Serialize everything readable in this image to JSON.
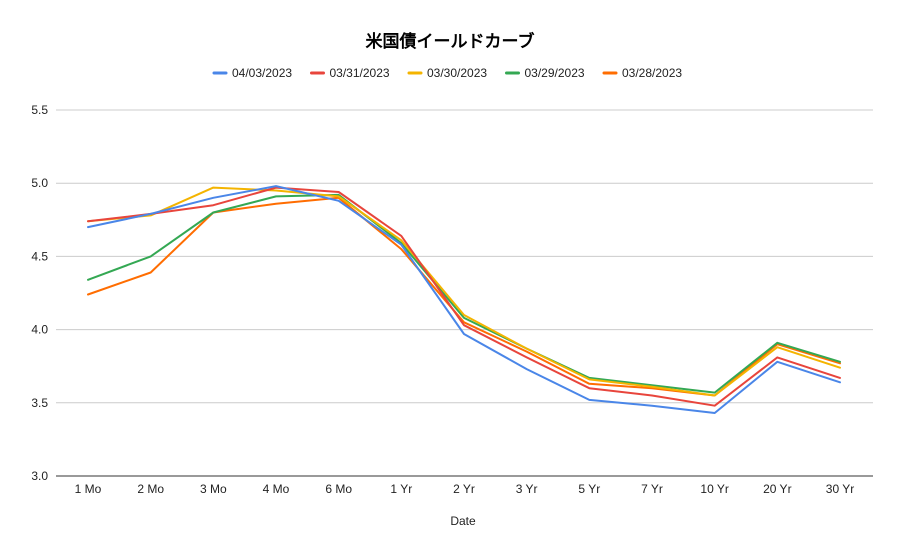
{
  "chart_data": {
    "type": "line",
    "title": "米国債イールドカーブ",
    "xlabel": "Date",
    "ylabel": "",
    "ylim": [
      3.0,
      5.5
    ],
    "yticks": [
      3.0,
      3.5,
      4.0,
      4.5,
      5.0,
      5.5
    ],
    "yticks_labels": [
      "3.0",
      "3.5",
      "4.0",
      "4.5",
      "5.0",
      "5.5"
    ],
    "grid": true,
    "legend_position": "top",
    "categories": [
      "1 Mo",
      "2 Mo",
      "3 Mo",
      "4 Mo",
      "6 Mo",
      "1 Yr",
      "2 Yr",
      "3 Yr",
      "5 Yr",
      "7 Yr",
      "10 Yr",
      "20 Yr",
      "30 Yr"
    ],
    "series": [
      {
        "name": "04/03/2023",
        "color": "#4a86e8",
        "values": [
          4.7,
          4.79,
          4.9,
          4.98,
          4.88,
          4.58,
          3.97,
          3.73,
          3.52,
          3.48,
          3.43,
          3.78,
          3.64
        ]
      },
      {
        "name": "03/31/2023",
        "color": "#e8453c",
        "values": [
          4.74,
          4.79,
          4.85,
          4.97,
          4.94,
          4.64,
          4.03,
          3.81,
          3.6,
          3.55,
          3.48,
          3.81,
          3.67
        ]
      },
      {
        "name": "03/30/2023",
        "color": "#f4b400",
        "values": [
          4.74,
          4.78,
          4.97,
          4.95,
          4.91,
          4.61,
          4.1,
          3.87,
          3.66,
          3.61,
          3.55,
          3.88,
          3.74
        ]
      },
      {
        "name": "03/29/2023",
        "color": "#34a853",
        "values": [
          4.34,
          4.5,
          4.8,
          4.91,
          4.92,
          4.59,
          4.08,
          3.87,
          3.67,
          3.62,
          3.57,
          3.91,
          3.78
        ]
      },
      {
        "name": "03/28/2023",
        "color": "#ff6d01",
        "values": [
          4.24,
          4.39,
          4.8,
          4.86,
          4.9,
          4.55,
          4.05,
          3.85,
          3.63,
          3.6,
          3.55,
          3.9,
          3.77
        ]
      }
    ]
  }
}
